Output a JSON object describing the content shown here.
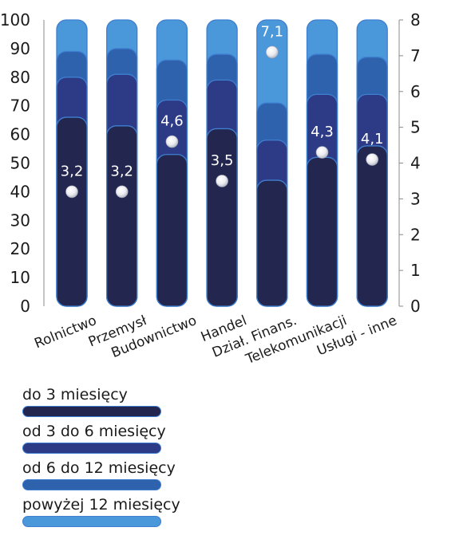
{
  "chart_data": {
    "type": "bar",
    "categories": [
      "Rolnictwo",
      "Przemysł",
      "Budownictwo",
      "Handel",
      "Dział. Finans.",
      "Telekomunikacji",
      "Usługi - inne"
    ],
    "stacked": true,
    "series": [
      {
        "name": "do 3 miesięcy",
        "values": [
          66,
          63,
          53,
          62,
          44,
          52,
          56
        ],
        "color": "#23264f"
      },
      {
        "name": "od 3 do 6 miesięcy",
        "values": [
          14,
          18,
          19,
          17,
          14,
          22,
          18
        ],
        "color": "#2d3a86"
      },
      {
        "name": "od 6 do 12 miesięcy",
        "values": [
          9,
          9,
          14,
          9,
          13,
          14,
          13
        ],
        "color": "#2f62ad"
      },
      {
        "name": "powyżej 12 miesięcy",
        "values": [
          11,
          10,
          14,
          12,
          29,
          12,
          13
        ],
        "color": "#4a97da"
      }
    ],
    "secondary_series": {
      "axis": "right",
      "values": [
        3.2,
        3.2,
        4.6,
        3.5,
        7.1,
        4.3,
        4.1
      ],
      "labels": [
        "3,2",
        "3,2",
        "4,6",
        "3,5",
        "7,1",
        "4,3",
        "4,1"
      ]
    },
    "y_ticks_left": [
      "0",
      "10",
      "20",
      "30",
      "40",
      "50",
      "60",
      "70",
      "80",
      "90",
      "100"
    ],
    "y_ticks_right": [
      "0",
      "1",
      "2",
      "3",
      "4",
      "5",
      "6",
      "7",
      "8"
    ],
    "ylim": [
      0,
      100
    ],
    "ylim_right": [
      0,
      8
    ],
    "legend_position": "bottom-left",
    "xlabel": "",
    "ylabel": ""
  }
}
